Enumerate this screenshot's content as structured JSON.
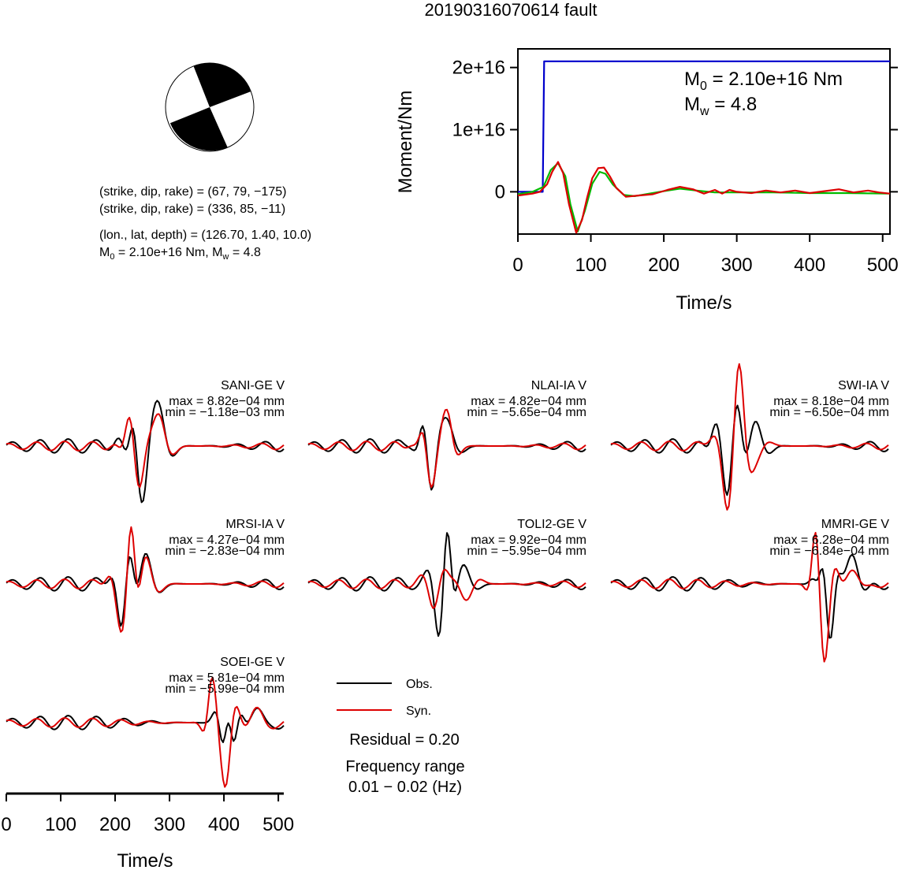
{
  "title": "20190316070614 fault",
  "focal": {
    "np1": "(strike, dip, rake) = (67, 79, −175)",
    "np2": "(strike, dip, rake) = (336, 85, −11)",
    "location": "(lon., lat, depth) = (126.70, 1.40, 10.0)",
    "moment_prefix": "M",
    "moment_sub": "0",
    "moment_value": " = 2.10e+16 Nm, M",
    "mw_sub": "w",
    "mw_value": " = 4.8"
  },
  "chart_data": [
    {
      "type": "line",
      "ylabel": "Moment/Nm",
      "xlabel": "Time/s",
      "xlim": [
        0,
        510
      ],
      "ylim": [
        -6800000000000000.0,
        2.3e+16
      ],
      "xticks": [
        "0",
        "100",
        "200",
        "300",
        "400",
        "500"
      ],
      "xtick_values": [
        0,
        100,
        200,
        300,
        400,
        500
      ],
      "yticks": [
        "0",
        "1e+16",
        "2e+16"
      ],
      "ytick_values": [
        0,
        1e+16,
        2e+16
      ],
      "annotation": {
        "m0_prefix": "M",
        "m0_sub": "0",
        "m0_value": " = 2.10e+16 Nm",
        "mw_prefix": "M",
        "mw_sub": "w",
        "mw_value": " = 4.8"
      },
      "series": [
        {
          "color": "#0000cc",
          "x": [
            0,
            34,
            36,
            510
          ],
          "y": [
            0,
            0,
            2.1e+16,
            2.1e+16
          ]
        },
        {
          "color": "#00bb00",
          "x": [
            0,
            20,
            35,
            45,
            55,
            65,
            72,
            82,
            92,
            102,
            112,
            120,
            130,
            145,
            160,
            180,
            200,
            222,
            245,
            270,
            300,
            350,
            400,
            450,
            510
          ],
          "y": [
            -400000000000000.0,
            0,
            800000000000000.0,
            3500000000000000.0,
            4600000000000000.0,
            2500000000000000.0,
            -2000000000000000.0,
            -6400000000000000.0,
            -3000000000000000.0,
            1300000000000000.0,
            3200000000000000.0,
            2900000000000000.0,
            1200000000000000.0,
            -500000000000000.0,
            -700000000000000.0,
            -300000000000000.0,
            100000000000000.0,
            500000000000000.0,
            200000000000000.0,
            -100000000000000.0,
            -100000000000000.0,
            -100000000000000.0,
            -200000000000000.0,
            -200000000000000.0,
            -300000000000000.0
          ]
        },
        {
          "color": "#dd0000",
          "x": [
            0,
            20,
            30,
            40,
            47,
            55,
            62,
            70,
            80,
            88,
            95,
            102,
            110,
            118,
            126,
            135,
            148,
            165,
            185,
            205,
            222,
            240,
            255,
            270,
            280,
            290,
            300,
            320,
            340,
            360,
            380,
            400,
            420,
            440,
            460,
            480,
            495,
            510
          ],
          "y": [
            -600000000000000.0,
            -300000000000000.0,
            0,
            1200000000000000.0,
            3200000000000000.0,
            4800000000000000.0,
            3000000000000000.0,
            -2000000000000000.0,
            -6600000000000000.0,
            -4500000000000000.0,
            -900000000000000.0,
            2200000000000000.0,
            3800000000000000.0,
            3900000000000000.0,
            2500000000000000.0,
            600000000000000.0,
            -800000000000000.0,
            -600000000000000.0,
            -400000000000000.0,
            300000000000000.0,
            800000000000000.0,
            400000000000000.0,
            -300000000000000.0,
            300000000000000.0,
            -300000000000000.0,
            300000000000000.0,
            0,
            -200000000000000.0,
            200000000000000.0,
            -100000000000000.0,
            200000000000000.0,
            -200000000000000.0,
            100000000000000.0,
            400000000000000.0,
            -100000000000000.0,
            200000000000000.0,
            -100000000000000.0,
            -300000000000000.0
          ]
        }
      ]
    },
    {
      "type": "line",
      "stations": [
        {
          "name": "SANI-GE V",
          "max": "max = 8.82e−04 mm",
          "min": "min = −1.18e−03 mm"
        },
        {
          "name": "NLAI-IA V",
          "max": "max = 4.82e−04 mm",
          "min": "min = −5.65e−04 mm"
        },
        {
          "name": "SWI-IA V",
          "max": "max = 8.18e−04 mm",
          "min": "min = −6.50e−04 mm"
        },
        {
          "name": "MRSI-IA V",
          "max": "max = 4.27e−04 mm",
          "min": "min = −2.83e−04 mm"
        },
        {
          "name": "TOLI2-GE V",
          "max": "max = 9.92e−04 mm",
          "min": "min = −5.95e−04 mm"
        },
        {
          "name": "MMRI-GE V",
          "max": "max = 6.28e−04 mm",
          "min": "min = −6.84e−04 mm"
        },
        {
          "name": "SOEI-GE V",
          "max": "max = 5.81e−04 mm",
          "min": "min = −5.99e−04 mm"
        }
      ],
      "xlabel": "Time/s",
      "xlim": [
        0,
        510
      ],
      "xticks": [
        "0",
        "100",
        "200",
        "300",
        "400",
        "500"
      ],
      "xtick_values": [
        0,
        100,
        200,
        300,
        400,
        500
      ],
      "legend": {
        "obs": "Obs.",
        "obs_color": "#000000",
        "syn": "Syn.",
        "syn_color": "#dd0000"
      },
      "residual": "Residual = 0.20",
      "freq_title": "Frequency range",
      "freq_value": "0.01 − 0.02 (Hz)"
    }
  ]
}
